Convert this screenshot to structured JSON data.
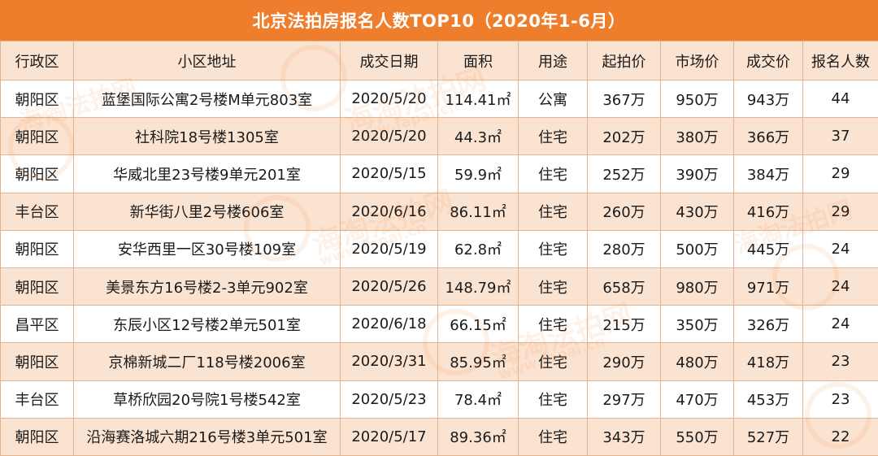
{
  "title": "北京法拍房报名人数TOP10（2020年1-6月）",
  "headers": [
    "行政区",
    "小区地址",
    "成交日期",
    "面积",
    "用途",
    "起拍价",
    "市场价",
    "成交价",
    "报名人数"
  ],
  "rows": [
    [
      "朝阳区",
      "蓝堡国际公寓2号楼M单元803室",
      "2020/5/20",
      "114.41㎡",
      "公寓",
      "367万",
      "950万",
      "943万",
      "44"
    ],
    [
      "朝阳区",
      "社科院18号楼1305室",
      "2020/5/20",
      "44.3㎡",
      "住宅",
      "202万",
      "380万",
      "366万",
      "37"
    ],
    [
      "朝阳区",
      "华威北里23号楼9单元201室",
      "2020/5/15",
      "59.9㎡",
      "住宅",
      "252万",
      "390万",
      "384万",
      "29"
    ],
    [
      "丰台区",
      "新华街八里2号楼606室",
      "2020/6/16",
      "86.11㎡",
      "住宅",
      "260万",
      "430万",
      "416万",
      "29"
    ],
    [
      "朝阳区",
      "安华西里一区30号楼109室",
      "2020/5/19",
      "62.8㎡",
      "住宅",
      "280万",
      "500万",
      "445万",
      "24"
    ],
    [
      "朝阳区",
      "美景东方16号楼2-3单元902室",
      "2020/5/26",
      "148.79㎡",
      "住宅",
      "658万",
      "980万",
      "971万",
      "24"
    ],
    [
      "昌平区",
      "东辰小区12号楼2单元501室",
      "2020/6/18",
      "66.15㎡",
      "住宅",
      "215万",
      "350万",
      "326万",
      "24"
    ],
    [
      "朝阳区",
      "京棉新城二厂118号楼2006室",
      "2020/3/31",
      "85.95㎡",
      "住宅",
      "290万",
      "480万",
      "418万",
      "23"
    ],
    [
      "丰台区",
      "草桥欣园20号院1号楼542室",
      "2020/5/23",
      "78.4㎡",
      "住宅",
      "297万",
      "470万",
      "453万",
      "23"
    ],
    [
      "朝阳区",
      "沿海赛洛城六期216号楼3单元501室",
      "2020/5/17",
      "89.36㎡",
      "住宅",
      "343万",
      "550万",
      "527万",
      "22"
    ]
  ],
  "watermark": {
    "text": "海淘法拍网",
    "url": "www.fapai.cn"
  },
  "colors": {
    "title_bg": "#ee7d2c",
    "stripe": "#fbe3d1",
    "border": "#e3b48f"
  }
}
